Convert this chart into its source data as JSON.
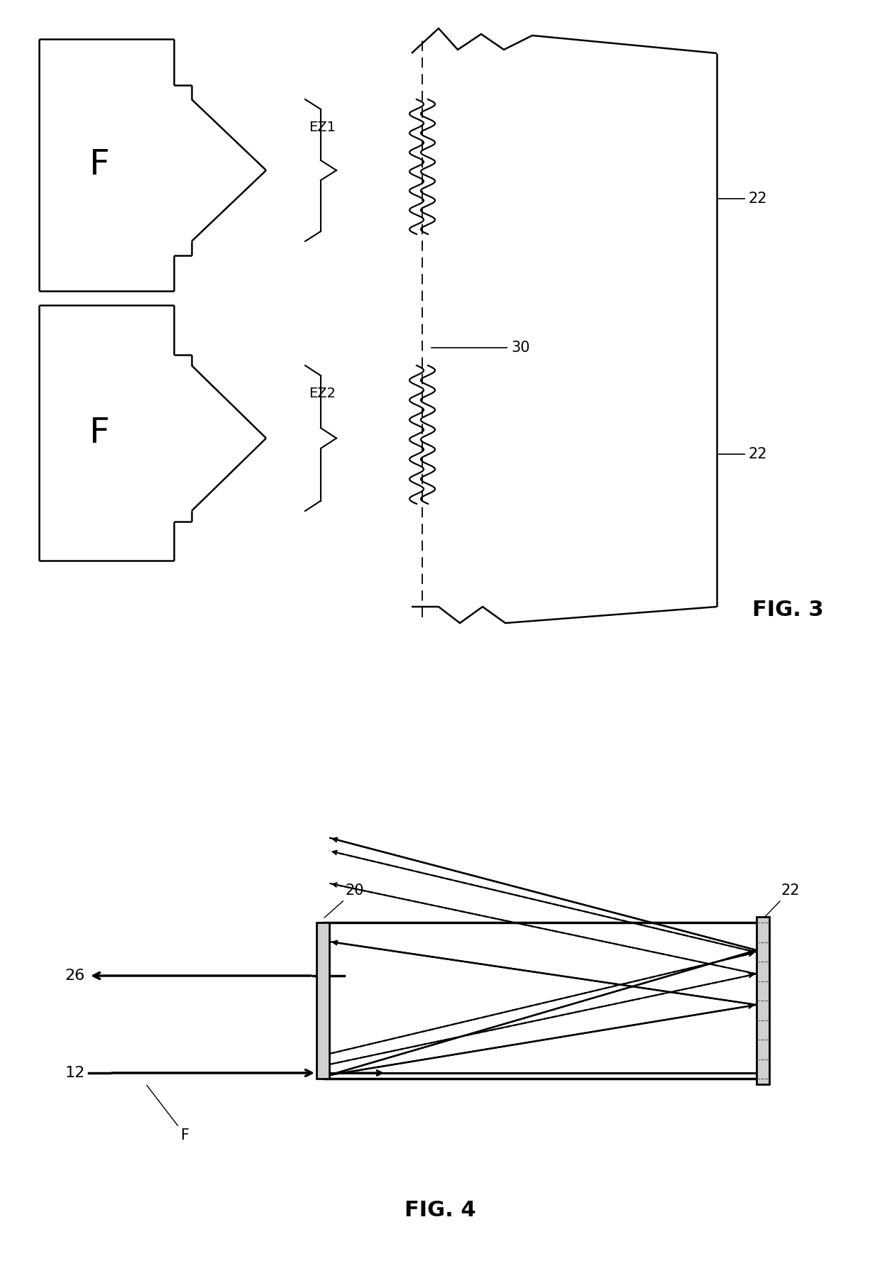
{
  "bg_color": "#ffffff",
  "line_color": "#000000",
  "lw": 1.8,
  "fig3_label": "FIG. 3",
  "fig4_label": "FIG. 4",
  "label_EZ1": "EZ1",
  "label_EZ2": "EZ2",
  "label_F": "F",
  "label_22": "22",
  "label_30": "30",
  "label_20": "20",
  "label_26": "26",
  "label_12": "12"
}
